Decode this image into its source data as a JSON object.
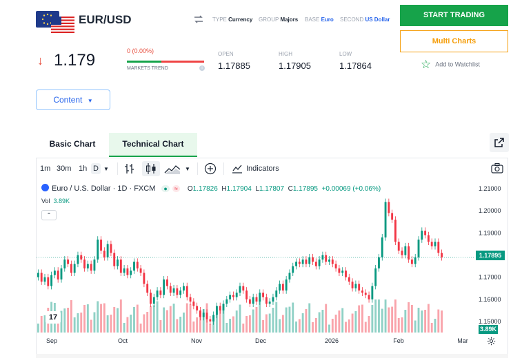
{
  "header": {
    "pair": "EUR/USD",
    "meta": [
      {
        "key": "TYPE",
        "value": "Currency",
        "blue": false
      },
      {
        "key": "GROUP",
        "value": "Majors",
        "blue": false
      },
      {
        "key": "BASE",
        "value": "Euro",
        "blue": true
      },
      {
        "key": "SECOND",
        "value": "US Dollar",
        "blue": true
      }
    ],
    "flag_icon": "eur-usd-flag-icon",
    "swap_icon": "swap-icon"
  },
  "quote": {
    "price": "1.179",
    "change": "0 (0.00%)",
    "markets_trend": "MARKETS TREND",
    "open_label": "OPEN",
    "open": "1.17885",
    "high_label": "HIGH",
    "high": "1.17905",
    "low_label": "LOW",
    "low": "1.17864",
    "trend_green_fraction": 0.45,
    "down_color": "#e74c3c"
  },
  "actions": {
    "start_trading": "START TRADING",
    "multi_charts": "Multi Charts",
    "watchlist": "Add to Watchlist"
  },
  "content_dropdown": "Content",
  "tabs": [
    {
      "label": "Basic Chart",
      "active": false
    },
    {
      "label": "Technical Chart",
      "active": true
    }
  ],
  "toolbar": {
    "intervals": [
      "1m",
      "30m",
      "1h",
      "D"
    ],
    "indicators": "Indicators"
  },
  "legend": {
    "symbol": "Euro / U.S. Dollar · 1D · FXCM",
    "o_label": "O",
    "o": "1.17826",
    "h_label": "H",
    "h": "1.17904",
    "l_label": "L",
    "l": "1.17807",
    "c_label": "C",
    "c": "1.17895",
    "change": "+0.00069 (+0.06%)",
    "vol_label": "Vol",
    "vol": "3.89K"
  },
  "price_scale": [
    "1.21000",
    "1.20000",
    "1.19000",
    "1.17000",
    "1.16000",
    "1.15000"
  ],
  "last_price_tag": "1.17895",
  "vol_tag": "3.89K",
  "time_axis": [
    "Sep",
    "Oct",
    "Nov",
    "Dec",
    "2026",
    "Feb",
    "Mar"
  ],
  "colors": {
    "up": "#089981",
    "down": "#f23645",
    "accent": "#16a34a",
    "link": "#2563eb",
    "warn": "#f59e0b"
  },
  "chart_data": {
    "type": "candlestick",
    "interval": "1D",
    "ylim": [
      1.145,
      1.215
    ],
    "closes": [
      1.172,
      1.168,
      1.17,
      1.166,
      1.171,
      1.173,
      1.169,
      1.174,
      1.178,
      1.176,
      1.172,
      1.176,
      1.18,
      1.178,
      1.174,
      1.176,
      1.173,
      1.178,
      1.187,
      1.182,
      1.179,
      1.185,
      1.181,
      1.175,
      1.178,
      1.172,
      1.174,
      1.171,
      1.173,
      1.177,
      1.174,
      1.172,
      1.167,
      1.163,
      1.158,
      1.161,
      1.164,
      1.162,
      1.169,
      1.166,
      1.163,
      1.165,
      1.162,
      1.164,
      1.166,
      1.161,
      1.159,
      1.157,
      1.155,
      1.152,
      1.154,
      1.151,
      1.15,
      1.153,
      1.157,
      1.155,
      1.158,
      1.16,
      1.162,
      1.161,
      1.163,
      1.166,
      1.164,
      1.16,
      1.158,
      1.161,
      1.159,
      1.163,
      1.161,
      1.158,
      1.159,
      1.161,
      1.164,
      1.167,
      1.164,
      1.169,
      1.172,
      1.175,
      1.177,
      1.176,
      1.178,
      1.176,
      1.179,
      1.177,
      1.175,
      1.178,
      1.18,
      1.177,
      1.178,
      1.176,
      1.174,
      1.172,
      1.173,
      1.17,
      1.168,
      1.165,
      1.167,
      1.164,
      1.163,
      1.162,
      1.16,
      1.166,
      1.174,
      1.179,
      1.188,
      1.204,
      1.199,
      1.196,
      1.186,
      1.182,
      1.18,
      1.184,
      1.178,
      1.176,
      1.179,
      1.187,
      1.191,
      1.189,
      1.186,
      1.184,
      1.186,
      1.181,
      1.179
    ]
  }
}
